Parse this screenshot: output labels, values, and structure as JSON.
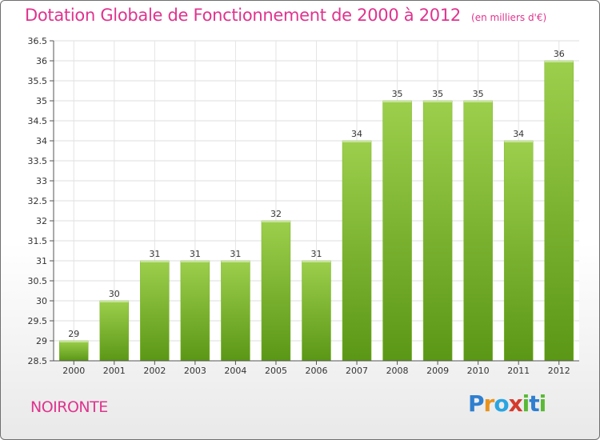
{
  "header": {
    "title": "Dotation Globale de Fonctionnement de 2000 à 2012",
    "unit": "(en milliers d'€)"
  },
  "footer": {
    "place": "NOIRONTE",
    "logo": [
      "P",
      "r",
      "o",
      "x",
      "i",
      "t",
      "i"
    ],
    "logo_colors": [
      "#2f7fd0",
      "#e8931e",
      "#2aa5e0",
      "#d53a2d",
      "#5ab936",
      "#2f7fd0",
      "#5ab936"
    ]
  },
  "colors": {
    "accent": "#e0338e",
    "bar_light": "#9ccf4c",
    "bar_dark": "#5b9716",
    "bar_top": "#7bb52a"
  },
  "chart_data": {
    "type": "bar",
    "categories": [
      "2000",
      "2001",
      "2002",
      "2003",
      "2004",
      "2005",
      "2006",
      "2007",
      "2008",
      "2009",
      "2010",
      "2011",
      "2012"
    ],
    "values": [
      29,
      30,
      31,
      31,
      31,
      32,
      31,
      34,
      35,
      35,
      35,
      34,
      36
    ],
    "data_labels": [
      "29",
      "30",
      "31",
      "31",
      "31",
      "32",
      "31",
      "34",
      "35",
      "35",
      "35",
      "34",
      "36"
    ],
    "ylim": [
      28.5,
      36.5
    ],
    "yticks": [
      28.5,
      29,
      29.5,
      30,
      30.5,
      31,
      31.5,
      32,
      32.5,
      33,
      33.5,
      34,
      34.5,
      35,
      35.5,
      36,
      36.5
    ],
    "ytick_labels": [
      "28.5",
      "29",
      "29.5",
      "30",
      "30.5",
      "31",
      "31.5",
      "32",
      "32.5",
      "33",
      "33.5",
      "34",
      "34.5",
      "35",
      "35.5",
      "36",
      "36.5"
    ],
    "grid": true,
    "title": "Dotation Globale de Fonctionnement de 2000 à 2012",
    "xlabel": "",
    "ylabel": ""
  }
}
